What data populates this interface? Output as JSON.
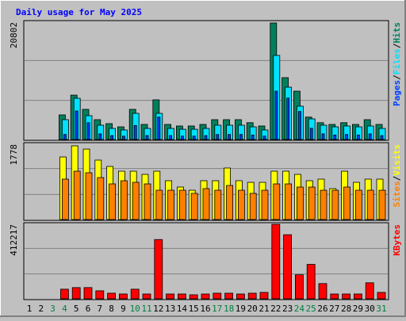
{
  "chart_data": [
    {
      "type": "bar",
      "title": "Daily usage for May 2025",
      "ylim": [
        0,
        20802
      ],
      "yticks": [
        20802
      ],
      "legend_separator": "/",
      "series": [
        {
          "name": "Hits",
          "color": "#00805c",
          "values": [
            null,
            null,
            null,
            4390,
            7920,
            5380,
            3540,
            2830,
            2260,
            5380,
            2690,
            7080,
            2690,
            2410,
            2410,
            2690,
            3540,
            3540,
            3540,
            3000,
            2410,
            20802,
            11040,
            8630,
            4000,
            3000,
            2690,
            3000,
            2690,
            3540,
            2690
          ]
        },
        {
          "name": "Files",
          "color": "#00e0ff",
          "values": [
            null,
            null,
            null,
            3540,
            7360,
            4250,
            2550,
            1980,
            1700,
            4670,
            1980,
            4670,
            1980,
            1830,
            1830,
            1980,
            2550,
            2550,
            2550,
            2260,
            1700,
            15010,
            9340,
            5950,
            3680,
            2550,
            2260,
            2410,
            2260,
            2410,
            1980
          ]
        },
        {
          "name": "Pages",
          "color": "#0040ff",
          "values": [
            null,
            null,
            null,
            900,
            5090,
            3000,
            1000,
            700,
            600,
            2500,
            700,
            4000,
            700,
            600,
            600,
            700,
            900,
            900,
            900,
            800,
            600,
            8630,
            7400,
            5000,
            2000,
            1000,
            800,
            900,
            800,
            1000,
            700
          ]
        }
      ]
    },
    {
      "type": "bar",
      "ylim": [
        0,
        1778
      ],
      "yticks": [
        1778
      ],
      "legend_separator": "/",
      "series": [
        {
          "name": "Visits",
          "color": "#ffff00",
          "values": [
            null,
            null,
            null,
            1510,
            1778,
            1700,
            1434,
            1281,
            1166,
            1166,
            1090,
            1166,
            937,
            784,
            707,
            937,
            937,
            1243,
            937,
            898,
            898,
            1166,
            1166,
            1090,
            937,
            975,
            746,
            1166,
            898,
            975,
            975
          ]
        },
        {
          "name": "Sites",
          "color": "#ff8000",
          "values": [
            null,
            null,
            null,
            975,
            1166,
            1128,
            1013,
            860,
            937,
            898,
            860,
            707,
            707,
            707,
            631,
            746,
            707,
            822,
            707,
            631,
            707,
            860,
            860,
            784,
            784,
            707,
            707,
            784,
            707,
            707,
            707
          ]
        }
      ]
    },
    {
      "type": "bar",
      "ylim": [
        0,
        412217
      ],
      "yticks": [
        412217
      ],
      "categories": [
        1,
        2,
        3,
        4,
        5,
        6,
        7,
        8,
        9,
        10,
        11,
        12,
        13,
        14,
        15,
        16,
        17,
        18,
        19,
        20,
        21,
        22,
        23,
        24,
        25,
        26,
        27,
        28,
        29,
        30,
        31
      ],
      "weekend": [
        3,
        4,
        10,
        11,
        17,
        18,
        24,
        25,
        31
      ],
      "weekend_color": "#008040",
      "series": [
        {
          "name": "KBytes",
          "color": "#ff0000",
          "values": [
            null,
            null,
            null,
            53190,
            62050,
            62050,
            44320,
            31030,
            26600,
            53190,
            26600,
            328000,
            26600,
            26600,
            22160,
            26600,
            31030,
            31030,
            26600,
            31030,
            35460,
            412217,
            354600,
            132970,
            190600,
            84220,
            26600,
            26600,
            26600,
            88650,
            35460
          ]
        }
      ]
    }
  ]
}
